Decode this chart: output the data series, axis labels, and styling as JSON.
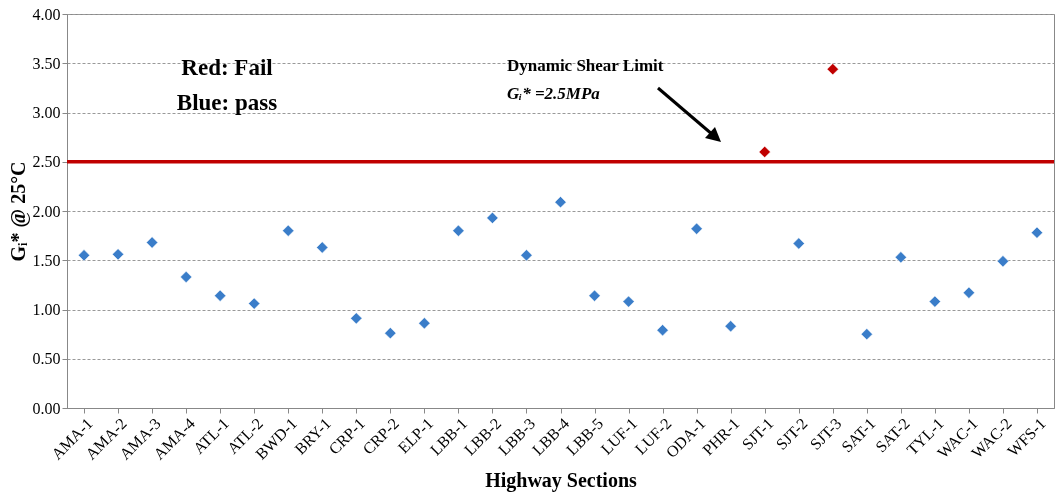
{
  "chart_data": {
    "type": "scatter",
    "xlabel": "Highway Sections",
    "ylabel": "Gᵢ* @ 25°C",
    "categories": [
      "AMA-1",
      "AMA-2",
      "AMA-3",
      "AMA-4",
      "ATL-1",
      "ATL-2",
      "BWD-1",
      "BRY-1",
      "CRP-1",
      "CRP-2",
      "ELP-1",
      "LBB-1",
      "LBB-2",
      "LBB-3",
      "LBB-4",
      "LBB-5",
      "LUF-1",
      "LUF-2",
      "ODA-1",
      "PHR-1",
      "SJT-1",
      "SJT-2",
      "SJT-3",
      "SAT-1",
      "SAT-2",
      "TYL-1",
      "WAC-1",
      "WAC-2",
      "WFS-1"
    ],
    "values": [
      1.55,
      1.56,
      1.68,
      1.33,
      1.14,
      1.06,
      1.8,
      1.63,
      0.91,
      0.76,
      0.86,
      1.8,
      1.93,
      1.55,
      2.09,
      1.14,
      1.08,
      0.79,
      1.82,
      0.83,
      2.6,
      1.67,
      3.44,
      0.75,
      1.53,
      1.08,
      1.17,
      1.49,
      1.78
    ],
    "colors": [
      "#3a7dc9",
      "#3a7dc9",
      "#3a7dc9",
      "#3a7dc9",
      "#3a7dc9",
      "#3a7dc9",
      "#3a7dc9",
      "#3a7dc9",
      "#3a7dc9",
      "#3a7dc9",
      "#3a7dc9",
      "#3a7dc9",
      "#3a7dc9",
      "#3a7dc9",
      "#3a7dc9",
      "#3a7dc9",
      "#3a7dc9",
      "#3a7dc9",
      "#3a7dc9",
      "#3a7dc9",
      "#c00000",
      "#3a7dc9",
      "#c00000",
      "#3a7dc9",
      "#3a7dc9",
      "#3a7dc9",
      "#3a7dc9",
      "#3a7dc9",
      "#3a7dc9"
    ],
    "ylim": [
      0,
      4
    ],
    "yticks": [
      {
        "value": 0,
        "label": "0.00"
      },
      {
        "value": 0.5,
        "label": "0.50"
      },
      {
        "value": 1,
        "label": "1.00"
      },
      {
        "value": 1.5,
        "label": "1.50"
      },
      {
        "value": 2,
        "label": "2.00"
      },
      {
        "value": 2.5,
        "label": "2.50"
      },
      {
        "value": 3,
        "label": "3.00"
      },
      {
        "value": 3.5,
        "label": "3.50"
      },
      {
        "value": 4,
        "label": "4.00"
      }
    ],
    "grid": "y",
    "marker": "diamond",
    "ref_lines": [
      {
        "axis": "y",
        "value": 2.5,
        "color": "#c00000"
      }
    ],
    "annotations": [
      "Dynamic Shear Limit",
      "Gᵢ* =2.5MPa",
      "Red: Fail",
      "Blue: pass"
    ]
  }
}
